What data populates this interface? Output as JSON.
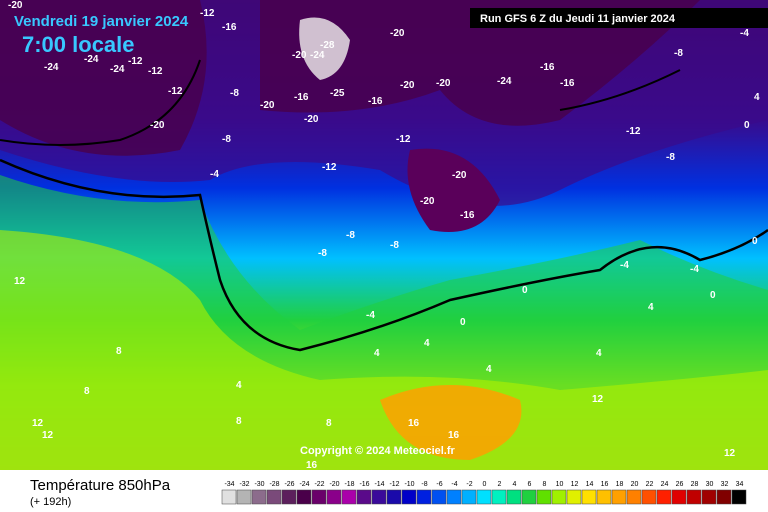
{
  "header": {
    "date": "Vendredi 19 janvier 2024",
    "time": "7:00 locale",
    "run": "Run GFS 6 Z du Jeudi 11 janvier 2024"
  },
  "copyright": "Copyright © 2024 Meteociel.fr",
  "footer": {
    "title": "Température 850hPa",
    "lead": "(+ 192h)"
  },
  "legend": {
    "values": [
      -34,
      -32,
      -30,
      -28,
      -26,
      -24,
      -22,
      -20,
      -18,
      -16,
      -14,
      -12,
      -10,
      -8,
      -6,
      -4,
      -2,
      0,
      2,
      4,
      6,
      8,
      10,
      12,
      14,
      16,
      18,
      20,
      22,
      24,
      26,
      28,
      30,
      32,
      34
    ],
    "colors": [
      "#e0e0e0",
      "#b4b4b4",
      "#8c6c8c",
      "#7a4a7a",
      "#5c1f5c",
      "#4a004a",
      "#6a006a",
      "#8a008a",
      "#aa00aa",
      "#5a0a8a",
      "#3a0a9a",
      "#1a0aaa",
      "#0000c8",
      "#0020e0",
      "#0050f0",
      "#0080ff",
      "#00b0ff",
      "#00e0ff",
      "#00f0c0",
      "#00e080",
      "#20d040",
      "#60e000",
      "#a0f000",
      "#e0f000",
      "#ffe000",
      "#ffc000",
      "#ffa000",
      "#ff8000",
      "#ff5000",
      "#ff2000",
      "#e00000",
      "#c00000",
      "#a00000",
      "#800000",
      "#000000"
    ]
  },
  "contour_labels": [
    -20,
    -12,
    -16,
    -24,
    -24,
    -24,
    -12,
    -12,
    -20,
    -20,
    -28,
    -20,
    -24,
    -25,
    -16,
    -20,
    -16,
    -20,
    -20,
    -20,
    -24,
    -16,
    -12,
    -8,
    -8,
    -4,
    -12,
    -12,
    -8,
    -8,
    -20,
    -20,
    -16,
    -8,
    -8,
    -4,
    0,
    0,
    4,
    4,
    -4,
    4,
    0,
    4,
    8,
    8,
    8,
    12,
    12,
    12,
    4,
    8,
    16,
    16,
    16,
    12,
    4,
    12,
    -4,
    -4,
    0,
    0,
    4,
    -8,
    -16,
    -12
  ]
}
